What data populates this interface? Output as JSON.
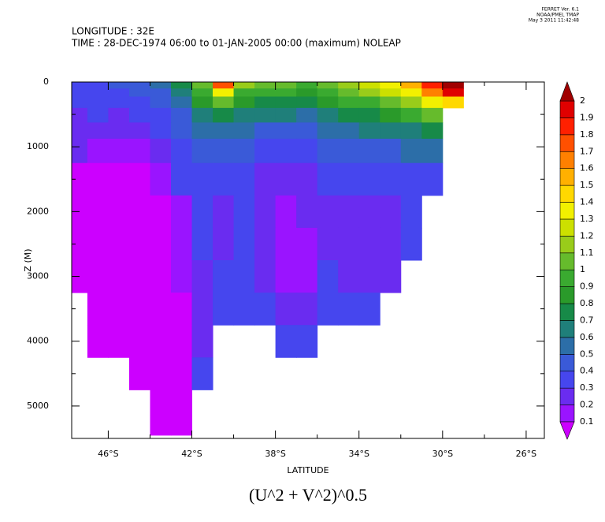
{
  "chart_data": {
    "type": "contourf",
    "header": [
      "LONGITUDE : 32E",
      "TIME : 28-DEC-1974 06:00 to 01-JAN-2005 00:00 (maximum) NOLEAP"
    ],
    "stamp": [
      "FERRET Ver. 6.1",
      "NOAA/PMEL TMAP",
      "May  3 2011 11:42:48"
    ],
    "title": "(U^2 + V^2)^0.5",
    "xlabel": "LATITUDE",
    "ylabel": "Z (M)",
    "xlim": [
      -47.75,
      -25.13
    ],
    "ylim": [
      0,
      5500
    ],
    "y_inverted": true,
    "xticks": [
      {
        "value": -46,
        "label": "46°S"
      },
      {
        "value": -42,
        "label": "42°S"
      },
      {
        "value": -38,
        "label": "38°S"
      },
      {
        "value": -34,
        "label": "34°S"
      },
      {
        "value": -30,
        "label": "30°S"
      },
      {
        "value": -26,
        "label": "26°S"
      }
    ],
    "xminorticks": [
      -44,
      -40,
      -36,
      -32,
      -28
    ],
    "yticks": [
      0,
      1000,
      2000,
      3000,
      4000,
      5000
    ],
    "yminorticks": [
      500,
      1500,
      2500,
      3500,
      4500
    ],
    "x": [
      -47.5,
      -46.5,
      -45.5,
      -44.5,
      -43.5,
      -42.5,
      -41.5,
      -40.5,
      -39.5,
      -38.5,
      -37.5,
      -36.5,
      -35.5,
      -34.5,
      -33.5,
      -32.5,
      -31.5,
      -30.5,
      -29.5
    ],
    "y": [
      50,
      150,
      300,
      500,
      750,
      1000,
      1500,
      2000,
      2500,
      3000,
      3500,
      4000,
      4500,
      5000,
      5300
    ],
    "values": [
      [
        0.35,
        0.35,
        0.4,
        0.45,
        0.5,
        0.7,
        1.0,
        1.7,
        1.1,
        1.0,
        1.0,
        0.9,
        1.0,
        1.1,
        1.2,
        1.3,
        1.5,
        1.8,
        2.1
      ],
      [
        0.3,
        0.35,
        0.35,
        0.4,
        0.45,
        0.65,
        0.9,
        1.3,
        0.9,
        0.9,
        0.9,
        0.8,
        0.9,
        1.0,
        1.1,
        1.2,
        1.3,
        1.6,
        1.9
      ],
      [
        0.3,
        0.3,
        0.3,
        0.35,
        0.4,
        0.55,
        0.8,
        1.0,
        0.8,
        0.75,
        0.75,
        0.7,
        0.8,
        0.9,
        0.95,
        1.0,
        1.1,
        1.3,
        1.4
      ],
      [
        0.25,
        0.3,
        0.25,
        0.3,
        0.35,
        0.45,
        0.65,
        0.75,
        0.65,
        0.6,
        0.6,
        0.55,
        0.65,
        0.7,
        0.75,
        0.8,
        0.9,
        1.0,
        null
      ],
      [
        0.25,
        0.2,
        0.2,
        0.25,
        0.3,
        0.4,
        0.5,
        0.55,
        0.5,
        0.45,
        0.45,
        0.4,
        0.5,
        0.55,
        0.6,
        0.6,
        0.65,
        0.7,
        null
      ],
      [
        0.2,
        0.15,
        0.15,
        0.15,
        0.2,
        0.35,
        0.4,
        0.4,
        0.4,
        0.35,
        0.35,
        0.35,
        0.4,
        0.4,
        0.45,
        0.45,
        0.5,
        0.5,
        null
      ],
      [
        0.05,
        0.05,
        0.05,
        0.05,
        0.15,
        0.3,
        0.3,
        0.3,
        0.3,
        0.25,
        0.2,
        0.25,
        0.3,
        0.3,
        0.3,
        0.35,
        0.35,
        0.35,
        null
      ],
      [
        0.05,
        0.05,
        0.05,
        0.05,
        0.05,
        0.15,
        0.3,
        0.25,
        0.3,
        0.2,
        0.15,
        0.2,
        0.25,
        0.2,
        0.2,
        0.25,
        0.3,
        null,
        null
      ],
      [
        0.05,
        0.05,
        0.05,
        0.05,
        0.05,
        0.15,
        0.3,
        0.25,
        0.3,
        0.2,
        0.15,
        0.15,
        0.25,
        0.2,
        0.2,
        0.2,
        0.3,
        null,
        null
      ],
      [
        0.05,
        0.05,
        0.05,
        0.05,
        0.05,
        0.1,
        0.25,
        0.3,
        0.3,
        0.2,
        0.15,
        0.15,
        0.3,
        0.2,
        0.2,
        0.25,
        null,
        null,
        null
      ],
      [
        null,
        0.05,
        0.05,
        0.05,
        0.05,
        0.05,
        0.25,
        0.3,
        0.35,
        0.3,
        0.25,
        0.25,
        0.3,
        0.3,
        0.3,
        null,
        null,
        null,
        null
      ],
      [
        null,
        0.05,
        0.05,
        0.05,
        0.05,
        0.05,
        0.25,
        null,
        null,
        null,
        0.3,
        0.3,
        null,
        null,
        null,
        null,
        null,
        null,
        null
      ],
      [
        null,
        null,
        null,
        0.05,
        0.05,
        0.05,
        0.3,
        null,
        null,
        null,
        null,
        null,
        null,
        null,
        null,
        null,
        null,
        null,
        null
      ],
      [
        null,
        null,
        null,
        null,
        0.05,
        0.05,
        null,
        null,
        null,
        null,
        null,
        null,
        null,
        null,
        null,
        null,
        null,
        null,
        null
      ],
      [
        null,
        null,
        null,
        null,
        0.05,
        0.05,
        null,
        null,
        null,
        null,
        null,
        null,
        null,
        null,
        null,
        null,
        null,
        null,
        null
      ]
    ],
    "colorbar": {
      "levels": [
        0.1,
        0.2,
        0.3,
        0.4,
        0.5,
        0.6,
        0.7,
        0.8,
        0.9,
        1,
        1.1,
        1.2,
        1.3,
        1.4,
        1.5,
        1.6,
        1.7,
        1.8,
        1.9,
        2
      ],
      "colors": [
        "#cc00ff",
        "#9a14ff",
        "#6a2cf0",
        "#4646ee",
        "#3a5ad8",
        "#2c6ea8",
        "#1f7f7a",
        "#178a48",
        "#2a9a2a",
        "#3aaa30",
        "#66bb2c",
        "#99cc1a",
        "#cce000",
        "#f2f000",
        "#ffd800",
        "#ffb000",
        "#ff8000",
        "#ff5000",
        "#ff2000",
        "#e00000",
        "#a00000"
      ]
    }
  }
}
